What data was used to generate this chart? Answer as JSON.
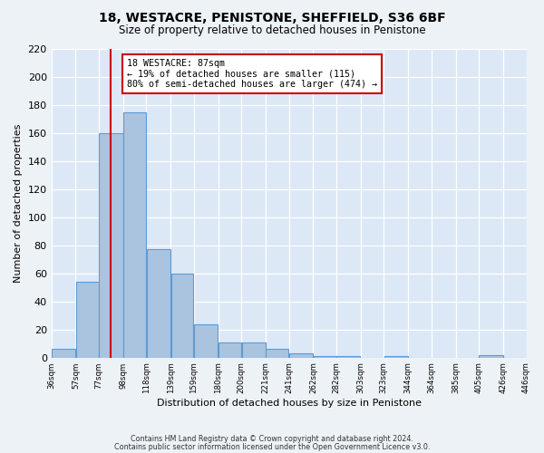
{
  "title": "18, WESTACRE, PENISTONE, SHEFFIELD, S36 6BF",
  "subtitle": "Size of property relative to detached houses in Penistone",
  "xlabel": "Distribution of detached houses by size in Penistone",
  "ylabel": "Number of detached properties",
  "bar_edges": [
    36,
    57,
    77,
    98,
    118,
    139,
    159,
    180,
    200,
    221,
    241,
    262,
    282,
    303,
    323,
    344,
    364,
    385,
    405,
    426,
    446
  ],
  "bar_heights": [
    6,
    54,
    160,
    175,
    77,
    60,
    24,
    11,
    11,
    6,
    3,
    1,
    1,
    0,
    1,
    0,
    0,
    0,
    2,
    0
  ],
  "bar_color": "#aac4e0",
  "bar_edge_color": "#5b9bd5",
  "property_line_x": 87,
  "property_line_color": "#cc0000",
  "annotation_text": "18 WESTACRE: 87sqm\n← 19% of detached houses are smaller (115)\n80% of semi-detached houses are larger (474) →",
  "annotation_box_color": "#cc0000",
  "ylim": [
    0,
    220
  ],
  "yticks": [
    0,
    20,
    40,
    60,
    80,
    100,
    120,
    140,
    160,
    180,
    200,
    220
  ],
  "tick_labels": [
    "36sqm",
    "57sqm",
    "77sqm",
    "98sqm",
    "118sqm",
    "139sqm",
    "159sqm",
    "180sqm",
    "200sqm",
    "221sqm",
    "241sqm",
    "262sqm",
    "282sqm",
    "303sqm",
    "323sqm",
    "344sqm",
    "364sqm",
    "385sqm",
    "405sqm",
    "426sqm",
    "446sqm"
  ],
  "fig_bg_color": "#edf2f7",
  "ax_bg_color": "#dce8f5",
  "grid_color": "#ffffff",
  "footer_line1": "Contains HM Land Registry data © Crown copyright and database right 2024.",
  "footer_line2": "Contains public sector information licensed under the Open Government Licence v3.0."
}
